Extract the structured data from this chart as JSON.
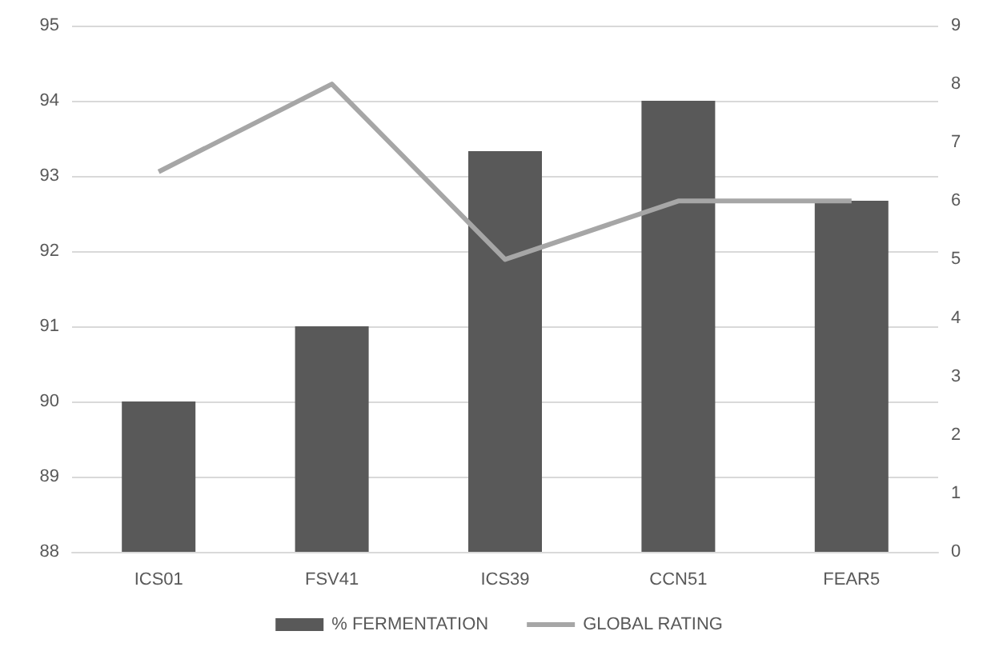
{
  "chart_data": {
    "type": "bar",
    "categories": [
      "ICS01",
      "FSV41",
      "ICS39",
      "CCN51",
      "FEAR5"
    ],
    "series": [
      {
        "name": "% FERMENTATION",
        "color": "#595959",
        "values": [
          90,
          91,
          93.33,
          94,
          92.67
        ]
      },
      {
        "name": "GLOBAL RATING",
        "type": "line",
        "axis": "y2",
        "color": "#a6a6a6",
        "values": [
          6.5,
          8,
          5,
          6,
          6
        ]
      }
    ],
    "ylim": [
      88,
      95
    ],
    "yticks": [
      88,
      89,
      90,
      91,
      92,
      93,
      94,
      95
    ],
    "y2lim": [
      0,
      9
    ],
    "y2ticks": [
      0,
      1,
      2,
      3,
      4,
      5,
      6,
      7,
      8,
      9
    ],
    "grid": "y",
    "legend": "bottom",
    "marker": "none"
  }
}
